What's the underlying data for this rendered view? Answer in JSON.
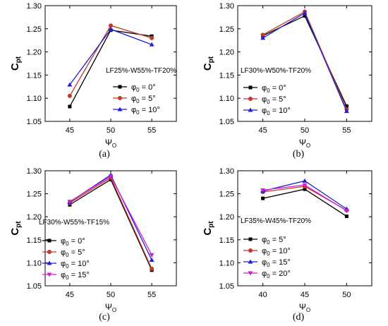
{
  "chart_data": [
    {
      "panel": "(a)",
      "type": "line",
      "annotation": "LF25%-W55%-TF20%",
      "ylabel": "C",
      "ylabel_sub": "pt",
      "xlabel": "Ψ",
      "xlabel_sub": "O",
      "ylim": [
        1.05,
        1.3
      ],
      "yticks": [
        "1.05",
        "1.10",
        "1.15",
        "1.20",
        "1.25",
        "1.30"
      ],
      "x": [
        45,
        50,
        55
      ],
      "xticks": [
        "45",
        "50",
        "55"
      ],
      "series": [
        {
          "name": "φ",
          "sub": "0",
          "suffix": " = 0°",
          "color": "#000000",
          "marker": "square",
          "values": [
            1.082,
            1.247,
            1.234
          ]
        },
        {
          "name": "φ",
          "sub": "0",
          "suffix": " = 5°",
          "color": "#c0392b",
          "marker": "circle",
          "values": [
            1.105,
            1.257,
            1.23
          ]
        },
        {
          "name": "φ",
          "sub": "0",
          "suffix": " = 10°",
          "color": "#1f1fcf",
          "marker": "triangle-up",
          "values": [
            1.129,
            1.249,
            1.216
          ]
        }
      ]
    },
    {
      "panel": "(b)",
      "type": "line",
      "annotation": "LF30%-W50%-TF20%",
      "ylabel": "C",
      "ylabel_sub": "pt",
      "xlabel": "Ψ",
      "xlabel_sub": "O",
      "ylim": [
        1.05,
        1.3
      ],
      "yticks": [
        "1.05",
        "1.10",
        "1.15",
        "1.20",
        "1.25",
        "1.30"
      ],
      "x": [
        45,
        50,
        55
      ],
      "xticks": [
        "45",
        "50",
        "55"
      ],
      "series": [
        {
          "name": "φ",
          "sub": "0",
          "suffix": " = 0°",
          "color": "#000000",
          "marker": "square",
          "values": [
            1.235,
            1.278,
            1.083
          ]
        },
        {
          "name": "φ",
          "sub": "0",
          "suffix": " = 5°",
          "color": "#c0392b",
          "marker": "circle",
          "values": [
            1.237,
            1.287,
            1.076
          ]
        },
        {
          "name": "φ",
          "sub": "0",
          "suffix": " = 10°",
          "color": "#1f1fcf",
          "marker": "triangle-up",
          "values": [
            1.23,
            1.284,
            1.072
          ]
        }
      ]
    },
    {
      "panel": "(c)",
      "type": "line",
      "annotation": "LF30%-W55%-TF15%",
      "ylabel": "C",
      "ylabel_sub": "pt",
      "xlabel": "Ψ",
      "xlabel_sub": "O",
      "ylim": [
        1.05,
        1.3
      ],
      "yticks": [
        "1.05",
        "1.10",
        "1.15",
        "1.20",
        "1.25",
        "1.30"
      ],
      "x": [
        45,
        50,
        55
      ],
      "xticks": [
        "45",
        "50",
        "55"
      ],
      "series": [
        {
          "name": "φ",
          "sub": "0",
          "suffix": " = 0°",
          "color": "#000000",
          "marker": "square",
          "values": [
            1.226,
            1.281,
            1.084
          ]
        },
        {
          "name": "φ",
          "sub": "0",
          "suffix": " = 5°",
          "color": "#c0392b",
          "marker": "circle",
          "values": [
            1.23,
            1.285,
            1.087
          ]
        },
        {
          "name": "φ",
          "sub": "0",
          "suffix": " = 10°",
          "color": "#1f1fcf",
          "marker": "triangle-up",
          "values": [
            1.232,
            1.291,
            1.106
          ]
        },
        {
          "name": "φ",
          "sub": "0",
          "suffix": " = 15°",
          "color": "#d11fd1",
          "marker": "triangle-down",
          "values": [
            1.233,
            1.288,
            1.117
          ]
        }
      ]
    },
    {
      "panel": "(d)",
      "type": "line",
      "annotation": "LF35%-W45%-TF20%",
      "ylabel": "C",
      "ylabel_sub": "pt",
      "xlabel": "Ψ",
      "xlabel_sub": "O",
      "ylim": [
        1.05,
        1.3
      ],
      "yticks": [
        "1.05",
        "1.10",
        "1.15",
        "1.20",
        "1.25",
        "1.30"
      ],
      "x": [
        40,
        45,
        50
      ],
      "xticks": [
        "40",
        "45",
        "50"
      ],
      "series": [
        {
          "name": "φ",
          "sub": "0",
          "suffix": " = 5°",
          "color": "#000000",
          "marker": "square",
          "values": [
            1.24,
            1.26,
            1.201
          ]
        },
        {
          "name": "φ",
          "sub": "0",
          "suffix": " = 10°",
          "color": "#c0392b",
          "marker": "circle",
          "values": [
            1.254,
            1.266,
            1.214
          ]
        },
        {
          "name": "φ",
          "sub": "0",
          "suffix": " = 15°",
          "color": "#1f1fcf",
          "marker": "triangle-up",
          "values": [
            1.256,
            1.278,
            1.217
          ]
        },
        {
          "name": "φ",
          "sub": "0",
          "suffix": " = 20°",
          "color": "#d11fd1",
          "marker": "triangle-down",
          "values": [
            1.258,
            1.269,
            1.213
          ]
        }
      ]
    }
  ]
}
